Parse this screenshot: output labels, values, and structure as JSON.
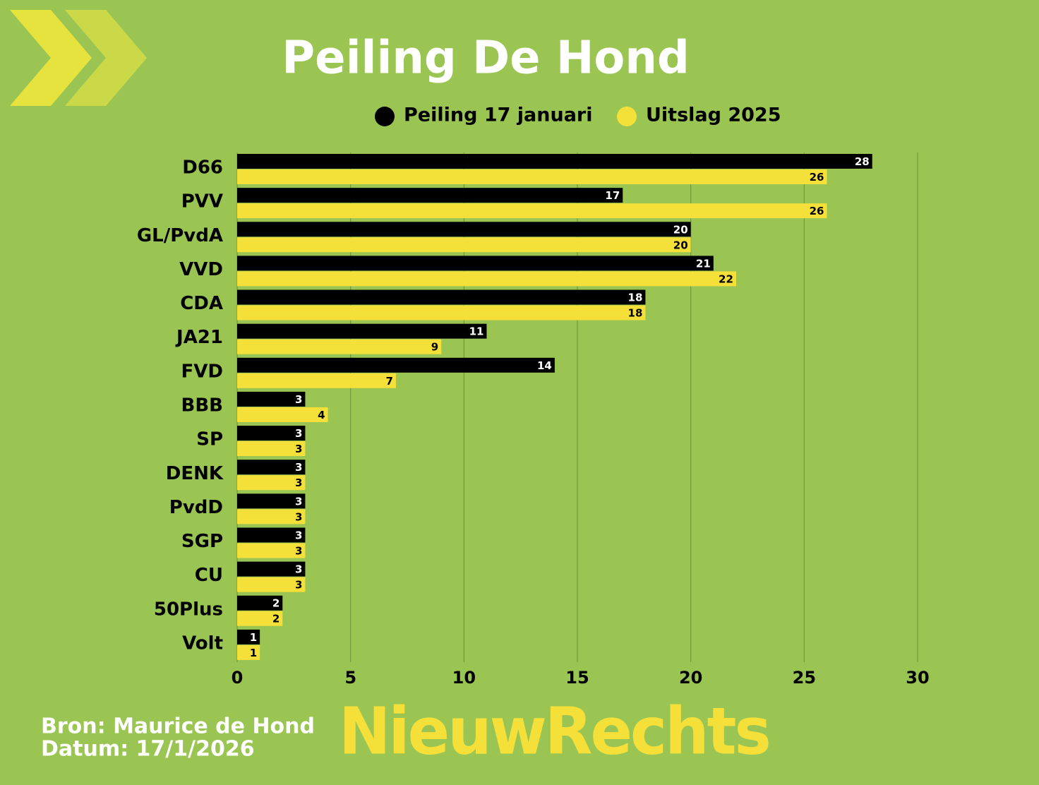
{
  "chart_data": {
    "type": "bar",
    "orientation": "horizontal",
    "title": "Peiling De Hond",
    "categories": [
      "D66",
      "PVV",
      "GL/PvdA",
      "VVD",
      "CDA",
      "JA21",
      "FVD",
      "BBB",
      "SP",
      "DENK",
      "PvdD",
      "SGP",
      "CU",
      "50Plus",
      "Volt"
    ],
    "series": [
      {
        "name": "Peiling 17 januari",
        "color": "#000000",
        "values": [
          28,
          17,
          20,
          21,
          18,
          11,
          14,
          3,
          3,
          3,
          3,
          3,
          3,
          2,
          1
        ]
      },
      {
        "name": "Uitslag 2025",
        "color": "#f5e03a",
        "values": [
          26,
          26,
          20,
          22,
          18,
          9,
          7,
          4,
          3,
          3,
          3,
          3,
          3,
          2,
          1
        ]
      }
    ],
    "xlim": [
      0,
      30
    ],
    "xticks": [
      0,
      5,
      10,
      15,
      20,
      25,
      30
    ],
    "grid": true,
    "legend": "top"
  },
  "footer": {
    "source": "Bron: Maurice de Hond",
    "date": "Datum: 17/1/2026",
    "logo": "NieuwRechts"
  }
}
